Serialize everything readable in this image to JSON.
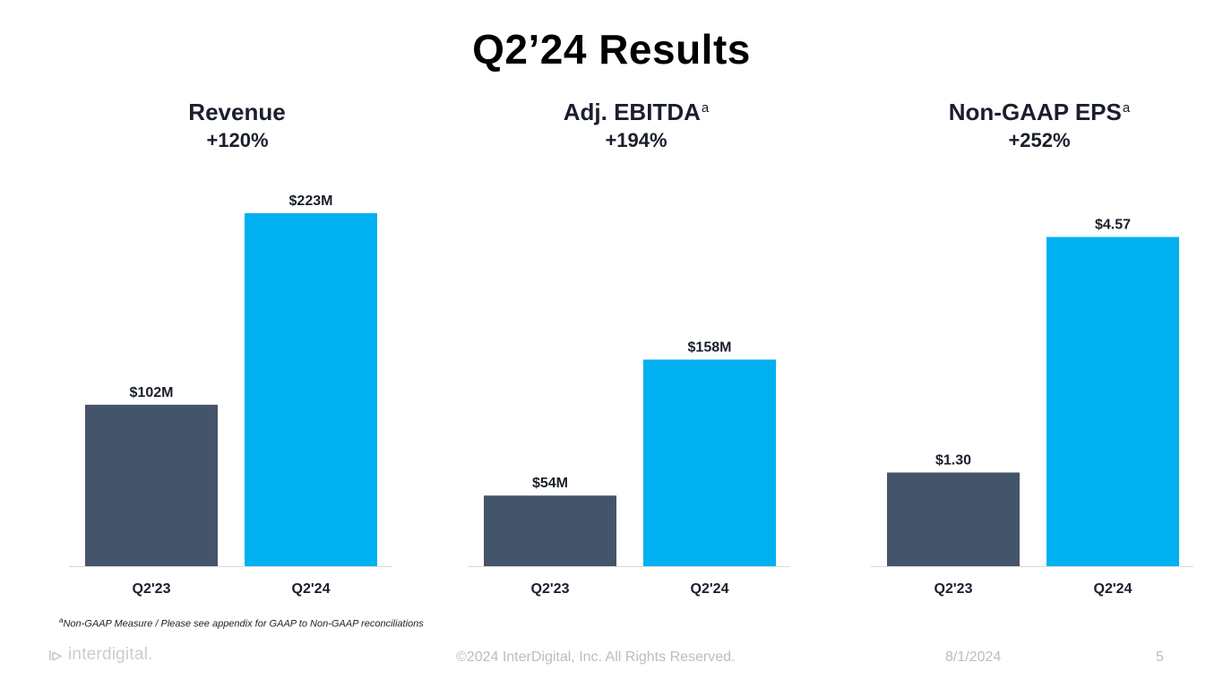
{
  "slide": {
    "title": "Q2’24 Results"
  },
  "chart_data": [
    {
      "type": "bar",
      "title": "Revenue",
      "title_marker": "",
      "change": "+120%",
      "categories": [
        "Q2'23",
        "Q2'24"
      ],
      "values": [
        102,
        223
      ],
      "labels": [
        "$102M",
        "$223M"
      ],
      "units": "$M",
      "colors": [
        "#44546a",
        "#00b0f0"
      ],
      "ylim": [
        0,
        223
      ]
    },
    {
      "type": "bar",
      "title": "Adj. EBITDA",
      "title_marker": "a",
      "change": "+194%",
      "categories": [
        "Q2'23",
        "Q2'24"
      ],
      "values": [
        54,
        158
      ],
      "labels": [
        "$54M",
        "$158M"
      ],
      "units": "$M",
      "colors": [
        "#44546a",
        "#00b0f0"
      ],
      "ylim": [
        0,
        270
      ]
    },
    {
      "type": "bar",
      "title": "Non-GAAP EPS",
      "title_marker": "a",
      "change": "+252%",
      "categories": [
        "Q2'23",
        "Q2'24"
      ],
      "values": [
        1.3,
        4.57
      ],
      "labels": [
        "$1.30",
        "$4.57"
      ],
      "units": "$",
      "colors": [
        "#44546a",
        "#00b0f0"
      ],
      "ylim": [
        0,
        4.9
      ]
    }
  ],
  "footnote": {
    "marker": "a",
    "text": "Non-GAAP Measure / Please see appendix for GAAP to Non-GAAP reconciliations"
  },
  "footer": {
    "logo_text": "interdigital.",
    "logo_icon": "interdigital-logo-icon",
    "copyright": "©2024 InterDigital, Inc. All Rights Reserved.",
    "date": "8/1/2024",
    "page": "5"
  }
}
